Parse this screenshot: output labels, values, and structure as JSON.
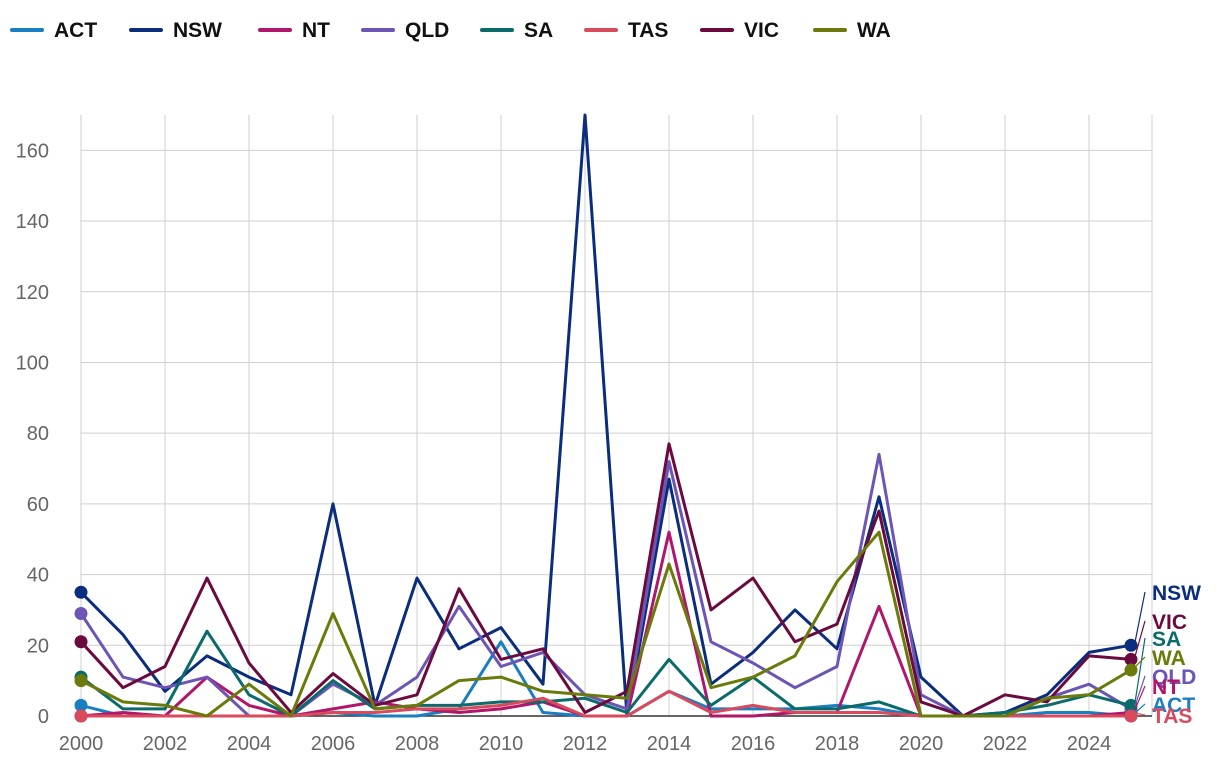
{
  "chart_data": {
    "type": "line",
    "title": "",
    "xlabel": "",
    "ylabel": "",
    "x": [
      2000,
      2001,
      2002,
      2003,
      2004,
      2005,
      2006,
      2007,
      2008,
      2009,
      2010,
      2011,
      2012,
      2013,
      2014,
      2015,
      2016,
      2017,
      2018,
      2019,
      2020,
      2021,
      2022,
      2023,
      2024,
      2025
    ],
    "xticks": [
      2000,
      2002,
      2004,
      2006,
      2008,
      2010,
      2012,
      2014,
      2016,
      2018,
      2020,
      2022,
      2024
    ],
    "xlim": [
      2000,
      2025.7
    ],
    "yticks": [
      0,
      20,
      40,
      60,
      80,
      100,
      120,
      140,
      160
    ],
    "ylim": [
      0,
      170
    ],
    "grid": true,
    "legend_position": "top-left",
    "series": [
      {
        "name": "ACT",
        "color": "#1a7fc1",
        "values": [
          3,
          0,
          0,
          0,
          0,
          0,
          1,
          0,
          0,
          2,
          21,
          1,
          0,
          0,
          7,
          2,
          2,
          2,
          3,
          2,
          0,
          0,
          0,
          1,
          1,
          0
        ]
      },
      {
        "name": "NSW",
        "color": "#0a2d7e",
        "values": [
          35,
          23,
          7,
          17,
          11,
          6,
          60,
          3,
          39,
          19,
          25,
          9,
          170,
          0,
          67,
          9,
          18,
          30,
          19,
          62,
          11,
          0,
          1,
          6,
          18,
          20
        ]
      },
      {
        "name": "NT",
        "color": "#b0176b",
        "values": [
          0,
          1,
          0,
          11,
          3,
          0,
          2,
          4,
          2,
          1,
          2,
          4,
          0,
          0,
          52,
          0,
          0,
          1,
          1,
          31,
          0,
          0,
          0,
          0,
          0,
          1
        ]
      },
      {
        "name": "QLD",
        "color": "#6d55b5",
        "values": [
          29,
          11,
          8,
          11,
          0,
          0,
          9,
          3,
          11,
          31,
          14,
          18,
          6,
          2,
          72,
          21,
          15,
          8,
          14,
          74,
          6,
          0,
          0,
          5,
          9,
          2
        ]
      },
      {
        "name": "SA",
        "color": "#0b6b6b",
        "values": [
          11,
          2,
          2,
          24,
          6,
          0,
          10,
          2,
          3,
          3,
          4,
          4,
          5,
          1,
          16,
          3,
          11,
          2,
          2,
          4,
          0,
          0,
          1,
          3,
          6,
          3
        ]
      },
      {
        "name": "TAS",
        "color": "#d94a5c",
        "values": [
          0,
          0,
          0,
          0,
          0,
          0,
          1,
          1,
          2,
          2,
          3,
          5,
          0,
          0,
          7,
          1,
          3,
          1,
          1,
          1,
          0,
          0,
          0,
          0,
          0,
          0
        ]
      },
      {
        "name": "VIC",
        "color": "#6b0a3e",
        "values": [
          21,
          8,
          14,
          39,
          15,
          1,
          12,
          3,
          6,
          36,
          16,
          19,
          1,
          7,
          77,
          30,
          39,
          21,
          26,
          58,
          4,
          0,
          6,
          4,
          17,
          16
        ]
      },
      {
        "name": "WA",
        "color": "#6b7a0a",
        "values": [
          10,
          4,
          3,
          0,
          9,
          0,
          29,
          2,
          3,
          10,
          11,
          7,
          6,
          5,
          43,
          8,
          11,
          17,
          38,
          52,
          0,
          0,
          0,
          5,
          6,
          13
        ]
      }
    ],
    "end_label_order": [
      "NSW",
      "VIC",
      "SA",
      "WA",
      "QLD",
      "NT",
      "ACT",
      "TAS"
    ]
  }
}
